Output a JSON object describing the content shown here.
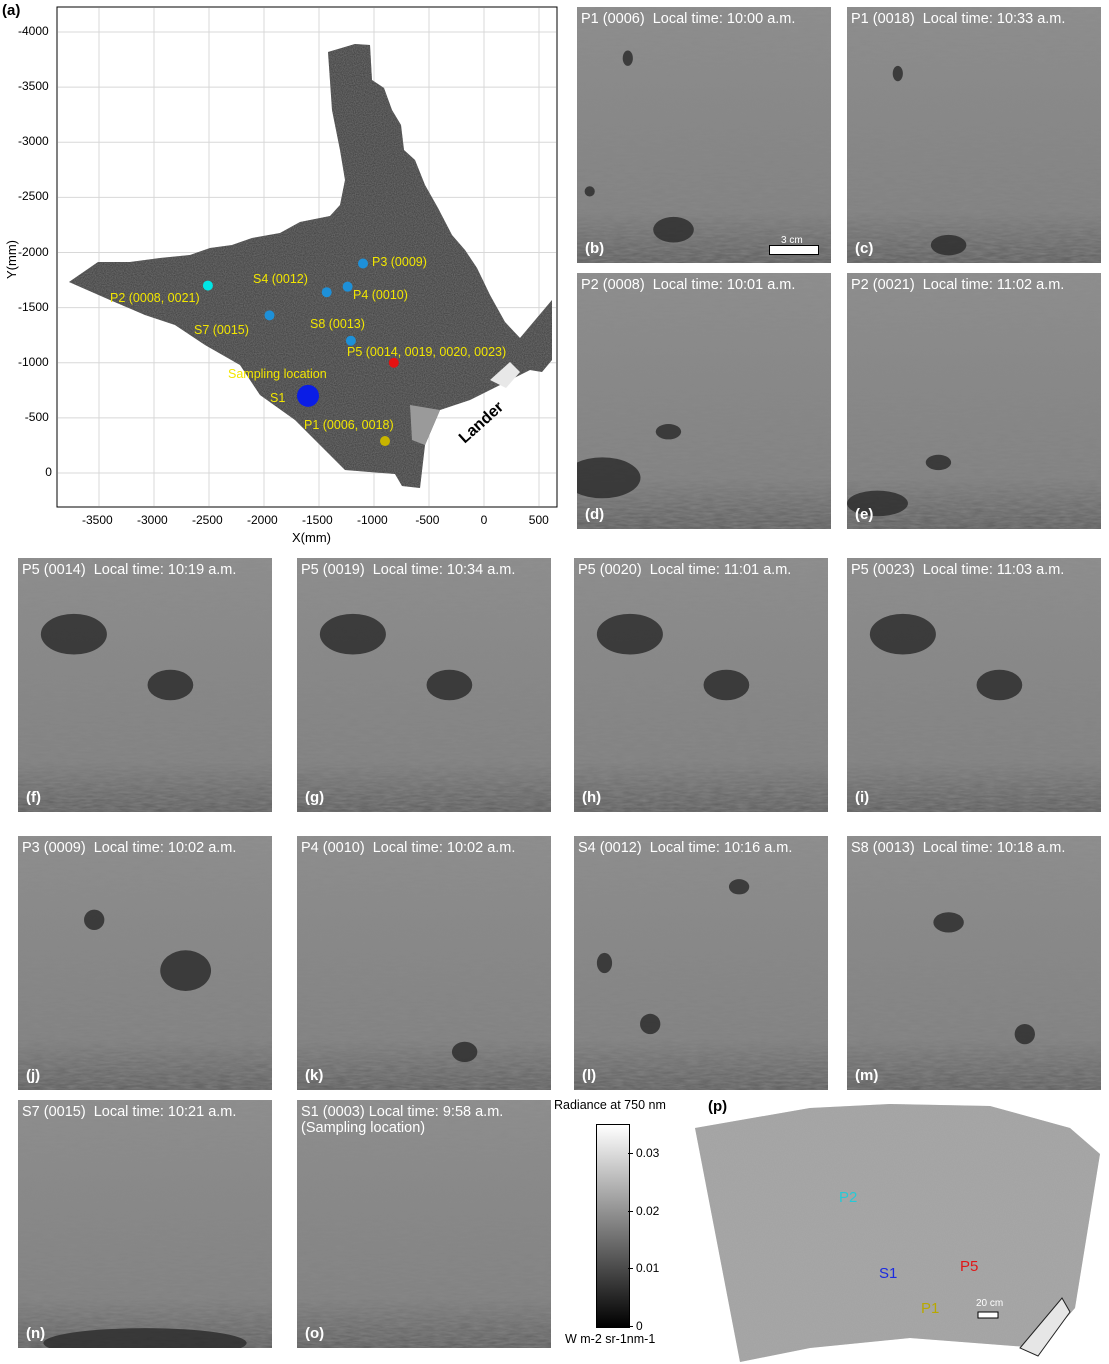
{
  "figure": {
    "panel_a": {
      "label": "(a)",
      "x_axis_label": "X(mm)",
      "y_axis_label": "Y(mm)",
      "x_ticks": [
        "-3500",
        "-3000",
        "-2500",
        "-2000",
        "-1500",
        "-1000",
        "-500",
        "0",
        "500"
      ],
      "y_ticks": [
        "-4000",
        "-3500",
        "-3000",
        "-2500",
        "-2000",
        "-1500",
        "-1000",
        "-500",
        "0"
      ],
      "lander_label": "Lander",
      "sampling_label": "Sampling location",
      "points": [
        {
          "id": "P3",
          "label": "P3 (0009)",
          "x": -1100,
          "y": -1900,
          "color": "#1e90d8"
        },
        {
          "id": "S4",
          "label": "S4 (0012)",
          "x": -1430,
          "y": -1640,
          "color": "#1e90d8"
        },
        {
          "id": "P4",
          "label": "P4 (0010)",
          "x": -1240,
          "y": -1690,
          "color": "#1e90d8"
        },
        {
          "id": "P2",
          "label": "P2 (0008, 0021)",
          "x": -2510,
          "y": -1700,
          "color": "#00e5e5"
        },
        {
          "id": "S7",
          "label": "S7 (0015)",
          "x": -1950,
          "y": -1430,
          "color": "#1e90d8"
        },
        {
          "id": "S8",
          "label": "S8 (0013)",
          "x": -1210,
          "y": -1200,
          "color": "#1e90d8"
        },
        {
          "id": "P5",
          "label": "P5 (0014, 0019, 0020, 0023)",
          "x": -820,
          "y": -1000,
          "color": "#e51010"
        },
        {
          "id": "S1",
          "label": "S1",
          "x": -1600,
          "y": -700,
          "color": "#0a1de6"
        },
        {
          "id": "P1",
          "label": "P1 (0006, 0018)",
          "x": -900,
          "y": -290,
          "color": "#c8b400"
        }
      ]
    },
    "panels": [
      {
        "id": "b",
        "label": "(b)",
        "title": "P1 (0006)  Local time: 10:00 a.m.",
        "scalebar": "3 cm"
      },
      {
        "id": "c",
        "label": "(c)",
        "title": "P1 (0018)  Local time: 10:33 a.m."
      },
      {
        "id": "d",
        "label": "(d)",
        "title": "P2 (0008)  Local time: 10:01 a.m."
      },
      {
        "id": "e",
        "label": "(e)",
        "title": "P2 (0021)  Local time: 11:02 a.m."
      },
      {
        "id": "f",
        "label": "(f)",
        "title": "P5 (0014)  Local time: 10:19 a.m."
      },
      {
        "id": "g",
        "label": "(g)",
        "title": "P5 (0019)  Local time: 10:34 a.m."
      },
      {
        "id": "h",
        "label": "(h)",
        "title": "P5 (0020)  Local time: 11:01 a.m."
      },
      {
        "id": "i",
        "label": "(i)",
        "title": "P5 (0023)  Local time: 11:03 a.m."
      },
      {
        "id": "j",
        "label": "(j)",
        "title": "P3 (0009)  Local time: 10:02 a.m."
      },
      {
        "id": "k",
        "label": "(k)",
        "title": "P4 (0010)  Local time: 10:02 a.m."
      },
      {
        "id": "l",
        "label": "(l)",
        "title": "S4 (0012)  Local time: 10:16 a.m."
      },
      {
        "id": "m",
        "label": "(m)",
        "title": "S8 (0013)  Local time: 10:18 a.m."
      },
      {
        "id": "n",
        "label": "(n)",
        "title": "S7 (0015)  Local time: 10:21 a.m."
      },
      {
        "id": "o",
        "label": "(o)",
        "title": "S1 (0003) Local time: 9:58 a.m.\n(Sampling location)"
      }
    ],
    "colorbar": {
      "title": "Radiance at 750 nm",
      "ticks": [
        "0.03",
        "0.02",
        "0.01",
        "0"
      ],
      "tick_values": [
        0.03,
        0.02,
        0.01,
        0
      ],
      "max": 0.035,
      "unit": "W m-2 sr-1nm-1"
    },
    "panel_p": {
      "label": "(p)",
      "scalebar": "20 cm",
      "markers": [
        {
          "text": "P2",
          "color": "#26c9d6"
        },
        {
          "text": "S1",
          "color": "#1b2be0"
        },
        {
          "text": "P5",
          "color": "#e01818"
        },
        {
          "text": "P1",
          "color": "#b8a800"
        }
      ]
    }
  }
}
